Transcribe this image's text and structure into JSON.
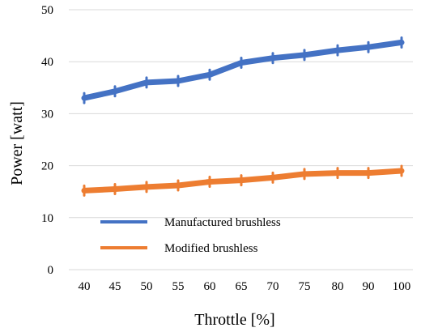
{
  "chart_data": {
    "type": "line",
    "title": "",
    "xlabel": "Throttle [%]",
    "ylabel": "Power [watt]",
    "categories": [
      "40",
      "45",
      "50",
      "55",
      "60",
      "65",
      "70",
      "75",
      "80",
      "90",
      "100"
    ],
    "ylim": [
      0,
      50
    ],
    "yticks": [
      "0",
      "10",
      "20",
      "30",
      "40",
      "50"
    ],
    "grid": "horizontal",
    "legend_position": "bottom-left",
    "series": [
      {
        "name": "Manufactured brushless",
        "color": "#4472C4",
        "values": [
          33.0,
          34.3,
          36.0,
          36.3,
          37.5,
          39.8,
          40.7,
          41.3,
          42.2,
          42.8,
          43.7
        ]
      },
      {
        "name": "Modified brushless",
        "color": "#ED7D31",
        "values": [
          15.2,
          15.5,
          15.9,
          16.2,
          16.9,
          17.2,
          17.7,
          18.4,
          18.6,
          18.6,
          19.0
        ]
      }
    ]
  }
}
